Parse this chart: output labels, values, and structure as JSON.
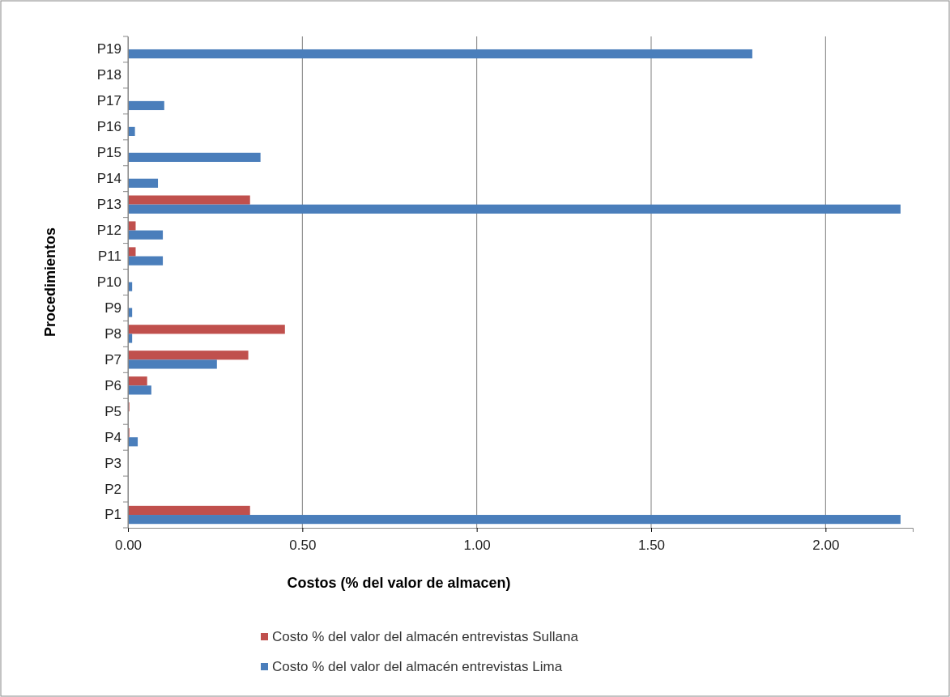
{
  "chart_data": {
    "type": "bar",
    "orientation": "horizontal",
    "xlabel": "Costos (% del valor de almacen)",
    "ylabel": "Procedimientos",
    "categories": [
      "P19",
      "P18",
      "P17",
      "P16",
      "P15",
      "P14",
      "P13",
      "P12",
      "P11",
      "P10",
      "P9",
      "P8",
      "P7",
      "P6",
      "P5",
      "P4",
      "P3",
      "P2",
      "P1"
    ],
    "series": [
      {
        "name": "Costo % del valor del almacén entrevistas Sullana",
        "color": "#c0504d",
        "values": [
          0,
          0,
          0,
          0,
          0,
          0,
          0.35,
          0.022,
          0.022,
          0,
          0,
          0.45,
          0.345,
          0.055,
          0.004,
          0.004,
          0.002,
          0.002,
          0.35
        ]
      },
      {
        "name": "Costo % del valor del almacén entrevistas Lima",
        "color": "#4a7ebb",
        "values": [
          1.79,
          0,
          0.104,
          0.02,
          0.38,
          0.086,
          2.215,
          0.1,
          0.1,
          0.012,
          0.012,
          0.012,
          0.255,
          0.067,
          0.002,
          0.028,
          0.002,
          0.002,
          2.215
        ]
      }
    ],
    "xlim": [
      0,
      2.25
    ],
    "xticks": [
      {
        "value": 0,
        "label": "0.00"
      },
      {
        "value": 0.5,
        "label": "0.50"
      },
      {
        "value": 1,
        "label": "1.00"
      },
      {
        "value": 1.5,
        "label": "1.50"
      },
      {
        "value": 2,
        "label": "2.00"
      }
    ],
    "grid": "x",
    "legend": "bottom"
  }
}
